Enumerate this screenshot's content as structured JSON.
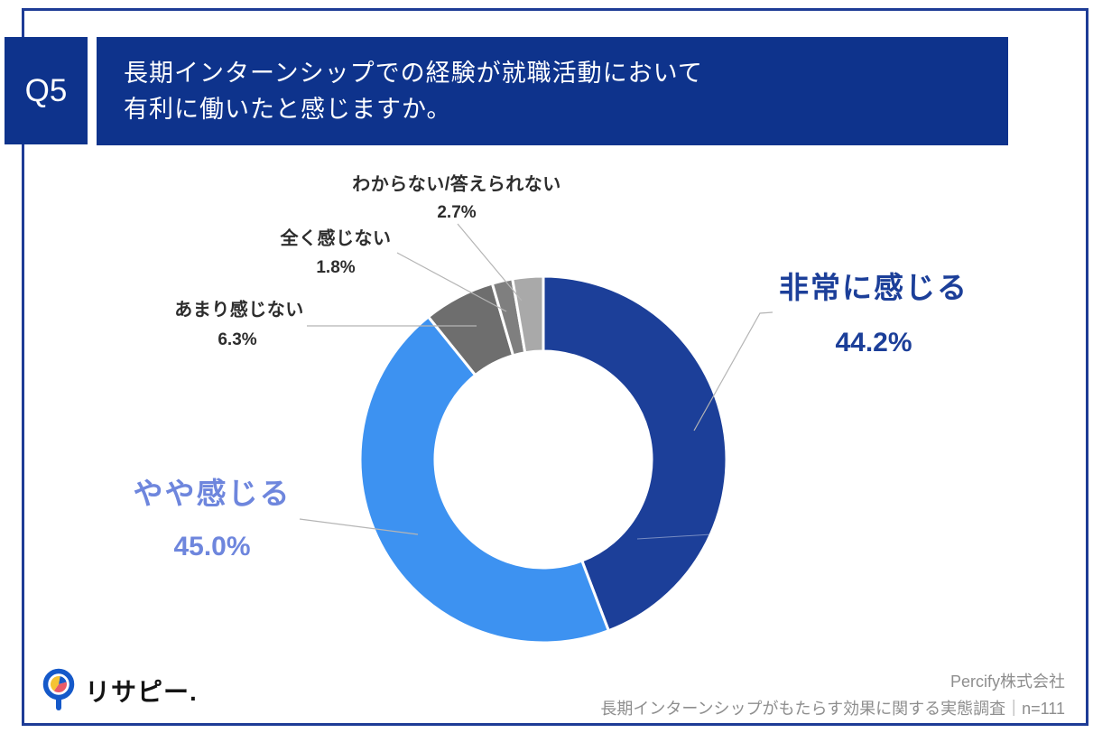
{
  "header": {
    "question_number": "Q5",
    "question_line1": "長期インターンシップでの経験が就職活動において",
    "question_line2": "有利に働いたと感じますか。"
  },
  "chart_data": {
    "type": "pie",
    "donut": true,
    "start_angle_deg": 0,
    "direction": "clockwise",
    "title": "長期インターンシップでの経験が就職活動において有利に働いたと感じますか。",
    "categories": [
      "非常に感じる",
      "やや感じる",
      "あまり感じない",
      "全く感じない",
      "わからない/答えられない"
    ],
    "values": [
      44.2,
      45.0,
      6.3,
      1.8,
      2.7
    ],
    "colors": [
      "#1c3f99",
      "#3d92f1",
      "#6e6e6e",
      "#7f7f7f",
      "#a9a9a9"
    ],
    "callouts": [
      {
        "label": "非常に感じる",
        "value": "44.2%"
      },
      {
        "label": "やや感じる",
        "value": "45.0%"
      },
      {
        "label": "あまり感じない",
        "value": "6.3%"
      },
      {
        "label": "全く感じない",
        "value": "1.8%"
      },
      {
        "label": "わからない/答えられない",
        "value": "2.7%"
      }
    ]
  },
  "footer": {
    "logo_text": "リサピー.",
    "company": "Percify株式会社",
    "survey_note": "長期インターンシップがもたらす効果に関する実態調査｜n=111"
  },
  "colors": {
    "brand_navy": "#0e338c",
    "frame_navy": "#1e3c96",
    "callout_navy": "#1c3f99",
    "callout_light_blue": "#6e86dd",
    "logo_blue": "#1559c9",
    "logo_yellow": "#f5c333",
    "logo_red": "#e85a67",
    "footer_gray": "#8e8e8e"
  }
}
